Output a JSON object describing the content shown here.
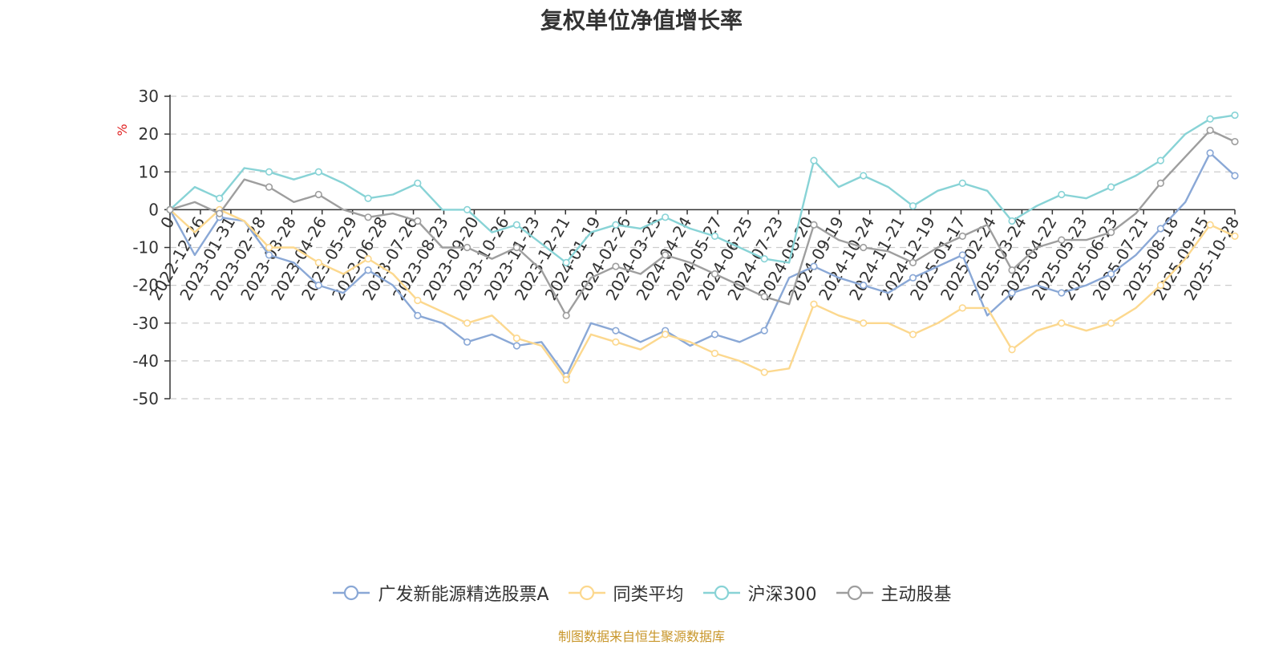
{
  "chart_data": {
    "type": "line",
    "title": "复权单位净值增长率",
    "ylabel": "%",
    "xlabel": "",
    "ylim": [
      -50,
      30
    ],
    "yticks": [
      30,
      20,
      10,
      0,
      -10,
      -20,
      -30,
      -40,
      -50
    ],
    "x_tick_labels": [
      "0",
      "2022-12-26",
      "2023-01-31",
      "2023-02-28",
      "2023-03-28",
      "2023-04-26",
      "2023-05-29",
      "2023-06-28",
      "2023-07-26",
      "2023-08-23",
      "2023-09-20",
      "2023-10-26",
      "2023-11-23",
      "2023-12-21",
      "2024-01-19",
      "2024-02-26",
      "2024-03-25",
      "2024-04-24",
      "2024-05-27",
      "2024-06-25",
      "2024-07-23",
      "2024-08-20",
      "2024-09-19",
      "2024-10-24",
      "2024-11-21",
      "2024-12-19",
      "2025-01-17",
      "2025-02-24",
      "2025-03-24",
      "2025-04-22",
      "2025-05-23",
      "2025-06-23",
      "2025-07-21",
      "2025-08-18",
      "2025-09-15",
      "2025-10-28"
    ],
    "grid": true,
    "legend_position": "bottom",
    "series": [
      {
        "name": "广发新能源精选股票A",
        "color": "#8aa8d6",
        "values": [
          0,
          -12,
          -2,
          -3,
          -12,
          -14,
          -20,
          -22,
          -16,
          -20,
          -28,
          -30,
          -35,
          -33,
          -36,
          -35,
          -44,
          -30,
          -32,
          -35,
          -32,
          -36,
          -33,
          -35,
          -32,
          -18,
          -15,
          -18,
          -20,
          -22,
          -18,
          -15,
          -12,
          -28,
          -22,
          -20,
          -22,
          -20,
          -17,
          -12,
          -5,
          2,
          15,
          9
        ]
      },
      {
        "name": "同类平均",
        "color": "#fcd88e",
        "values": [
          0,
          -6,
          0,
          -3,
          -10,
          -10,
          -14,
          -17,
          -13,
          -17,
          -24,
          -27,
          -30,
          -28,
          -34,
          -36,
          -45,
          -33,
          -35,
          -37,
          -33,
          -35,
          -38,
          -40,
          -43,
          -42,
          -25,
          -28,
          -30,
          -30,
          -33,
          -30,
          -26,
          -26,
          -37,
          -32,
          -30,
          -32,
          -30,
          -26,
          -20,
          -13,
          -4,
          -7
        ]
      },
      {
        "name": "沪深300",
        "color": "#88d3d6",
        "values": [
          0,
          6,
          3,
          11,
          10,
          8,
          10,
          7,
          3,
          4,
          7,
          0,
          0,
          -6,
          -4,
          -9,
          -14,
          -6,
          -4,
          -5,
          -2,
          -5,
          -7,
          -10,
          -13,
          -14,
          13,
          6,
          9,
          6,
          1,
          5,
          7,
          5,
          -3,
          1,
          4,
          3,
          6,
          9,
          13,
          20,
          24,
          25
        ]
      },
      {
        "name": "主动股基",
        "color": "#9e9e9e",
        "values": [
          0,
          2,
          -1,
          8,
          6,
          2,
          4,
          0,
          -2,
          -1,
          -3,
          -10,
          -10,
          -13,
          -10,
          -16,
          -28,
          -18,
          -15,
          -17,
          -12,
          -14,
          -17,
          -20,
          -23,
          -25,
          -4,
          -8,
          -10,
          -11,
          -14,
          -10,
          -7,
          -4,
          -16,
          -10,
          -8,
          -8,
          -6,
          -1,
          7,
          14,
          21,
          18
        ]
      }
    ]
  },
  "source_note": "制图数据来自恒生聚源数据库"
}
